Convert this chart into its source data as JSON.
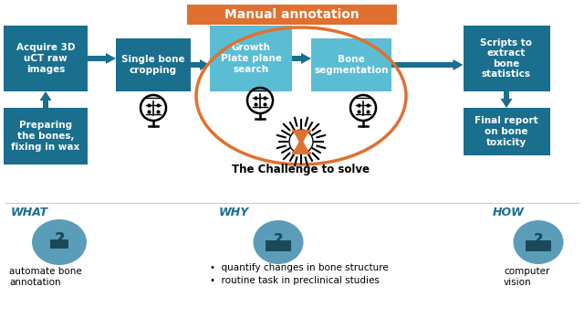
{
  "bg_color": "#ffffff",
  "dark_teal": "#1a6e8e",
  "light_teal": "#5bbdd4",
  "orange": "#e07030",
  "white": "#ffffff",
  "black": "#000000",
  "blue_text": "#1a6e8e",
  "icon_bg": "#5b9db8",
  "icon_dark": "#1a4a5a",
  "box1_text": "Acquire 3D\nuCT raw\nimages",
  "box2_text": "Single bone\ncropping",
  "box3_text": "Growth\nPlate plane\nsearch",
  "box4_text": "Bone\nsegmentation",
  "box5_text": "Scripts to\nextract\nbone\nstatistics",
  "box6_text": "Preparing\nthe bones,\nfixing in wax",
  "box7_text": "Final report\non bone\ntoxicity",
  "header_text": "Manual annotation",
  "challenge_text": "The Challenge to solve",
  "what_label": "WHAT",
  "why_label": "WHY",
  "how_label": "HOW",
  "what_desc": "automate bone\nannotation",
  "why_bullet1": "quantify changes in bone structure",
  "why_bullet2": "routine task in preclinical studies",
  "how_desc": "computer\nvision"
}
